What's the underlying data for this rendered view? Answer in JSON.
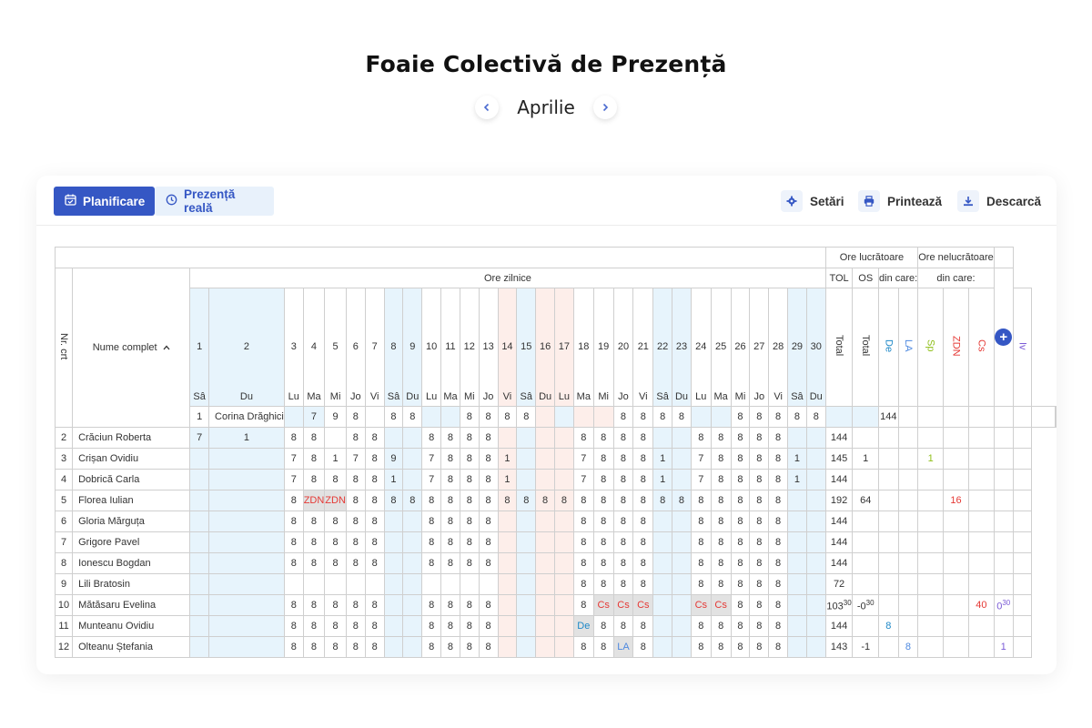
{
  "page": {
    "title": "Foaie Colectivă de Prezență",
    "month": "Aprilie",
    "prev_icon": "chevron-left-icon",
    "next_icon": "chevron-right-icon"
  },
  "toolbar": {
    "tab_plan": "Planificare",
    "tab_real": "Prezență reală",
    "settings": "Setări",
    "print": "Printează",
    "download": "Descarcă"
  },
  "colors": {
    "accent": "#3557c4",
    "weekend": "#e7f4fc",
    "holiday": "#fdeeea",
    "leave": "#e2e2e2"
  },
  "header": {
    "nr": "Nr. crt",
    "name": "Nume complet",
    "ore_zilnice": "Ore zilnice",
    "ore_lucratoare": "Ore lucrătoare",
    "ore_nelucratoare": "Ore nelucrătoare",
    "tol": "TOL",
    "os": "OS",
    "din_care": "din care:",
    "total": "Total",
    "de": "De",
    "la": "LA",
    "sp": "Sp",
    "zdn": "ZDN",
    "cs": "Cs",
    "iv": "Iv"
  },
  "days": [
    {
      "n": "1",
      "w": "Sâ",
      "t": "wk"
    },
    {
      "n": "2",
      "w": "Du",
      "t": "wk"
    },
    {
      "n": "3",
      "w": "Lu",
      "t": ""
    },
    {
      "n": "4",
      "w": "Ma",
      "t": ""
    },
    {
      "n": "5",
      "w": "Mi",
      "t": ""
    },
    {
      "n": "6",
      "w": "Jo",
      "t": ""
    },
    {
      "n": "7",
      "w": "Vi",
      "t": ""
    },
    {
      "n": "8",
      "w": "Sâ",
      "t": "wk"
    },
    {
      "n": "9",
      "w": "Du",
      "t": "wk"
    },
    {
      "n": "10",
      "w": "Lu",
      "t": ""
    },
    {
      "n": "11",
      "w": "Ma",
      "t": ""
    },
    {
      "n": "12",
      "w": "Mi",
      "t": ""
    },
    {
      "n": "13",
      "w": "Jo",
      "t": ""
    },
    {
      "n": "14",
      "w": "Vi",
      "t": "hol"
    },
    {
      "n": "15",
      "w": "Sâ",
      "t": "wk"
    },
    {
      "n": "16",
      "w": "Du",
      "t": "hol"
    },
    {
      "n": "17",
      "w": "Lu",
      "t": "hol"
    },
    {
      "n": "18",
      "w": "Ma",
      "t": ""
    },
    {
      "n": "19",
      "w": "Mi",
      "t": ""
    },
    {
      "n": "20",
      "w": "Jo",
      "t": ""
    },
    {
      "n": "21",
      "w": "Vi",
      "t": ""
    },
    {
      "n": "22",
      "w": "Sâ",
      "t": "wk"
    },
    {
      "n": "23",
      "w": "Du",
      "t": "wk"
    },
    {
      "n": "24",
      "w": "Lu",
      "t": ""
    },
    {
      "n": "25",
      "w": "Ma",
      "t": ""
    },
    {
      "n": "26",
      "w": "Mi",
      "t": ""
    },
    {
      "n": "27",
      "w": "Jo",
      "t": ""
    },
    {
      "n": "28",
      "w": "Vi",
      "t": ""
    },
    {
      "n": "29",
      "w": "Sâ",
      "t": "wk"
    },
    {
      "n": "30",
      "w": "Du",
      "t": "wk"
    }
  ],
  "rows": [
    {
      "nr": "1",
      "name": "Corina Drăghici",
      "cells": [
        "",
        "7",
        "9",
        "8",
        "",
        "8",
        "8",
        "",
        "",
        "8",
        "8",
        "8",
        "8",
        "",
        "",
        "",
        "",
        "8",
        "8",
        "8",
        "8",
        "",
        "",
        "8",
        "8",
        "8",
        "8",
        "8",
        "",
        ""
      ],
      "tol": "144",
      "os": "",
      "de": "",
      "la": "",
      "sp": "",
      "zdn": "",
      "cs": "",
      "iv": ""
    },
    {
      "nr": "2",
      "name": "Crăciun Roberta",
      "cells": [
        "7",
        "1",
        "8",
        "8",
        "",
        "8",
        "8",
        "",
        "",
        "8",
        "8",
        "8",
        "8",
        "",
        "",
        "",
        "",
        "8",
        "8",
        "8",
        "8",
        "",
        "",
        "8",
        "8",
        "8",
        "8",
        "8",
        "",
        ""
      ],
      "tol": "144",
      "os": "",
      "de": "",
      "la": "",
      "sp": "",
      "zdn": "",
      "cs": "",
      "iv": ""
    },
    {
      "nr": "3",
      "name": "Crișan Ovidiu",
      "cells": [
        "",
        "",
        "7",
        "8",
        "1",
        "7",
        "8",
        "9",
        "",
        "7",
        "8",
        "8",
        "8",
        "1",
        "",
        "",
        "",
        "7",
        "8",
        "8",
        "8",
        "1",
        "",
        "7",
        "8",
        "8",
        "8",
        "8",
        "1",
        ""
      ],
      "tol": "145",
      "os": "1",
      "de": "",
      "la": "",
      "sp": "1",
      "zdn": "",
      "cs": "",
      "iv": ""
    },
    {
      "nr": "4",
      "name": "Dobrică Carla",
      "cells": [
        "",
        "",
        "7",
        "8",
        "8",
        "8",
        "8",
        "1",
        "",
        "7",
        "8",
        "8",
        "8",
        "1",
        "",
        "",
        "",
        "7",
        "8",
        "8",
        "8",
        "1",
        "",
        "7",
        "8",
        "8",
        "8",
        "8",
        "1",
        ""
      ],
      "tol": "144",
      "os": "",
      "de": "",
      "la": "",
      "sp": "",
      "zdn": "",
      "cs": "",
      "iv": ""
    },
    {
      "nr": "5",
      "name": "Florea Iulian",
      "cells": [
        "",
        "",
        "8",
        "ZDN",
        "ZDN",
        "8",
        "8",
        "8",
        "8",
        "8",
        "8",
        "8",
        "8",
        "8",
        "8",
        "8",
        "8",
        "8",
        "8",
        "8",
        "8",
        "8",
        "8",
        "8",
        "8",
        "8",
        "8",
        "8",
        "",
        ""
      ],
      "tol": "192",
      "os": "64",
      "de": "",
      "la": "",
      "sp": "",
      "zdn": "16",
      "cs": "",
      "iv": ""
    },
    {
      "nr": "6",
      "name": "Gloria Mărguța",
      "cells": [
        "",
        "",
        "8",
        "8",
        "8",
        "8",
        "8",
        "",
        "",
        "8",
        "8",
        "8",
        "8",
        "",
        "",
        "",
        "",
        "8",
        "8",
        "8",
        "8",
        "",
        "",
        "8",
        "8",
        "8",
        "8",
        "8",
        "",
        ""
      ],
      "tol": "144",
      "os": "",
      "de": "",
      "la": "",
      "sp": "",
      "zdn": "",
      "cs": "",
      "iv": ""
    },
    {
      "nr": "7",
      "name": "Grigore Pavel",
      "cells": [
        "",
        "",
        "8",
        "8",
        "8",
        "8",
        "8",
        "",
        "",
        "8",
        "8",
        "8",
        "8",
        "",
        "",
        "",
        "",
        "8",
        "8",
        "8",
        "8",
        "",
        "",
        "8",
        "8",
        "8",
        "8",
        "8",
        "",
        ""
      ],
      "tol": "144",
      "os": "",
      "de": "",
      "la": "",
      "sp": "",
      "zdn": "",
      "cs": "",
      "iv": ""
    },
    {
      "nr": "8",
      "name": "Ionescu Bogdan",
      "cells": [
        "",
        "",
        "8",
        "8",
        "8",
        "8",
        "8",
        "",
        "",
        "8",
        "8",
        "8",
        "8",
        "",
        "",
        "",
        "",
        "8",
        "8",
        "8",
        "8",
        "",
        "",
        "8",
        "8",
        "8",
        "8",
        "8",
        "",
        ""
      ],
      "tol": "144",
      "os": "",
      "de": "",
      "la": "",
      "sp": "",
      "zdn": "",
      "cs": "",
      "iv": ""
    },
    {
      "nr": "9",
      "name": "Lili Bratosin",
      "cells": [
        "",
        "",
        "",
        "",
        "",
        "",
        "",
        "",
        "",
        "",
        "",
        "",
        "",
        "",
        "",
        "",
        "",
        "8",
        "8",
        "8",
        "8",
        "",
        "",
        "8",
        "8",
        "8",
        "8",
        "8",
        "",
        ""
      ],
      "tol": "72",
      "os": "",
      "de": "",
      "la": "",
      "sp": "",
      "zdn": "",
      "cs": "",
      "iv": ""
    },
    {
      "nr": "10",
      "name": "Mătăsaru Evelina",
      "cells": [
        "",
        "",
        "8",
        "8",
        "8",
        "8",
        "8",
        "",
        "",
        "8",
        "8",
        "8",
        "8",
        "",
        "",
        "",
        "",
        "8",
        "Cs",
        "Cs",
        "Cs",
        "",
        "",
        "Cs",
        "Cs",
        "8",
        "8",
        "8",
        "",
        ""
      ],
      "tol": "103",
      "tol_sup": "30",
      "os": "-0",
      "os_sup": "30",
      "de": "",
      "la": "",
      "sp": "",
      "zdn": "",
      "cs": "40",
      "iv": "0",
      "iv_sup": "30"
    },
    {
      "nr": "11",
      "name": "Munteanu Ovidiu",
      "cells": [
        "",
        "",
        "8",
        "8",
        "8",
        "8",
        "8",
        "",
        "",
        "8",
        "8",
        "8",
        "8",
        "",
        "",
        "",
        "",
        "De",
        "8",
        "8",
        "8",
        "",
        "",
        "8",
        "8",
        "8",
        "8",
        "8",
        "",
        ""
      ],
      "tol": "144",
      "os": "",
      "de": "8",
      "la": "",
      "sp": "",
      "zdn": "",
      "cs": "",
      "iv": ""
    },
    {
      "nr": "12",
      "name": "Olteanu Ștefania",
      "cells": [
        "",
        "",
        "8",
        "8",
        "8",
        "8",
        "8",
        "",
        "",
        "8",
        "8",
        "8",
        "8",
        "",
        "",
        "",
        "",
        "8",
        "8",
        "LA",
        "8",
        "",
        "",
        "8",
        "8",
        "8",
        "8",
        "8",
        "",
        ""
      ],
      "tol": "143",
      "os": "-1",
      "de": "",
      "la": "8",
      "sp": "",
      "zdn": "",
      "cs": "",
      "iv": "1"
    }
  ]
}
